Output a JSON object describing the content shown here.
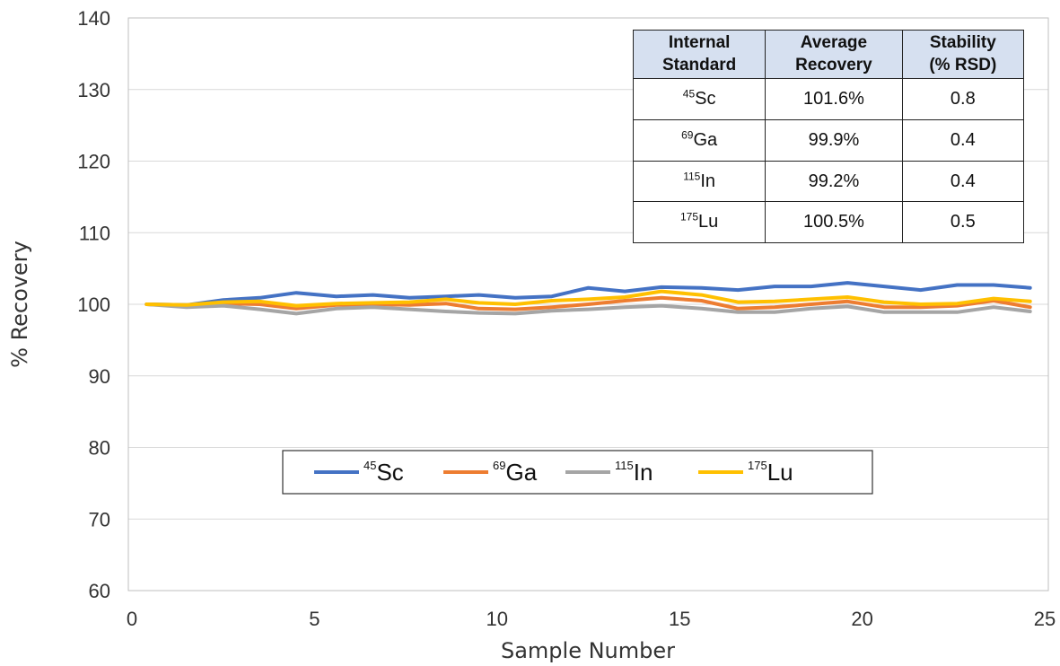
{
  "chart_data": {
    "type": "line",
    "xlabel": "Sample Number",
    "ylabel": "% Recovery",
    "xlim": [
      0,
      25
    ],
    "ylim": [
      60,
      140
    ],
    "x_ticks": [
      0,
      5,
      10,
      15,
      20,
      25
    ],
    "y_ticks": [
      60,
      70,
      80,
      90,
      100,
      110,
      120,
      130,
      140
    ],
    "grid": "horizontal",
    "legend_position": "bottom-center",
    "x": [
      0.4,
      1.5,
      2.5,
      3.5,
      4.5,
      5.6,
      6.6,
      7.6,
      8.6,
      9.5,
      10.5,
      11.5,
      12.5,
      13.5,
      14.5,
      15.6,
      16.6,
      17.6,
      18.6,
      19.6,
      20.6,
      21.6,
      22.6,
      23.6,
      24.6
    ],
    "series": [
      {
        "mass": "45",
        "element": "Sc",
        "color": "#4472c4",
        "values": [
          100,
          99.9,
          100.6,
          100.9,
          101.6,
          101.1,
          101.3,
          100.9,
          101.1,
          101.3,
          100.9,
          101.1,
          102.3,
          101.8,
          102.4,
          102.3,
          102.0,
          102.5,
          102.5,
          103.0,
          102.5,
          102.0,
          102.7,
          102.7,
          102.3
        ]
      },
      {
        "mass": "69",
        "element": "Ga",
        "color": "#ed7d31",
        "values": [
          100,
          99.8,
          100.1,
          100.0,
          99.4,
          99.9,
          100.0,
          99.9,
          100.1,
          99.4,
          99.3,
          99.6,
          100.0,
          100.5,
          100.9,
          100.5,
          99.4,
          99.6,
          100.0,
          100.4,
          99.6,
          99.6,
          99.8,
          100.5,
          99.6
        ]
      },
      {
        "mass": "115",
        "element": "In",
        "color": "#a5a5a5",
        "values": [
          100,
          99.6,
          99.8,
          99.3,
          98.7,
          99.4,
          99.6,
          99.3,
          99.0,
          98.8,
          98.7,
          99.1,
          99.3,
          99.6,
          99.8,
          99.4,
          98.9,
          98.9,
          99.4,
          99.7,
          98.9,
          98.9,
          98.9,
          99.6,
          99.0
        ]
      },
      {
        "mass": "175",
        "element": "Lu",
        "color": "#ffc000",
        "values": [
          100,
          99.9,
          100.3,
          100.4,
          99.8,
          100.1,
          100.2,
          100.3,
          100.7,
          100.2,
          100.0,
          100.5,
          100.7,
          101.0,
          101.8,
          101.3,
          100.3,
          100.4,
          100.7,
          101.0,
          100.3,
          100.0,
          100.1,
          100.8,
          100.4
        ]
      }
    ]
  },
  "table": {
    "headers": [
      {
        "line1": "Internal",
        "line2": "Standard"
      },
      {
        "line1": "Average",
        "line2": "Recovery"
      },
      {
        "line1": "Stability",
        "line2": "(% RSD)"
      }
    ],
    "rows": [
      {
        "mass": "45",
        "element": "Sc",
        "recovery": "101.6%",
        "rsd": "0.8"
      },
      {
        "mass": "69",
        "element": "Ga",
        "recovery": "99.9%",
        "rsd": "0.4"
      },
      {
        "mass": "115",
        "element": "In",
        "recovery": "99.2%",
        "rsd": "0.4"
      },
      {
        "mass": "175",
        "element": "Lu",
        "recovery": "100.5%",
        "rsd": "0.5"
      }
    ]
  }
}
